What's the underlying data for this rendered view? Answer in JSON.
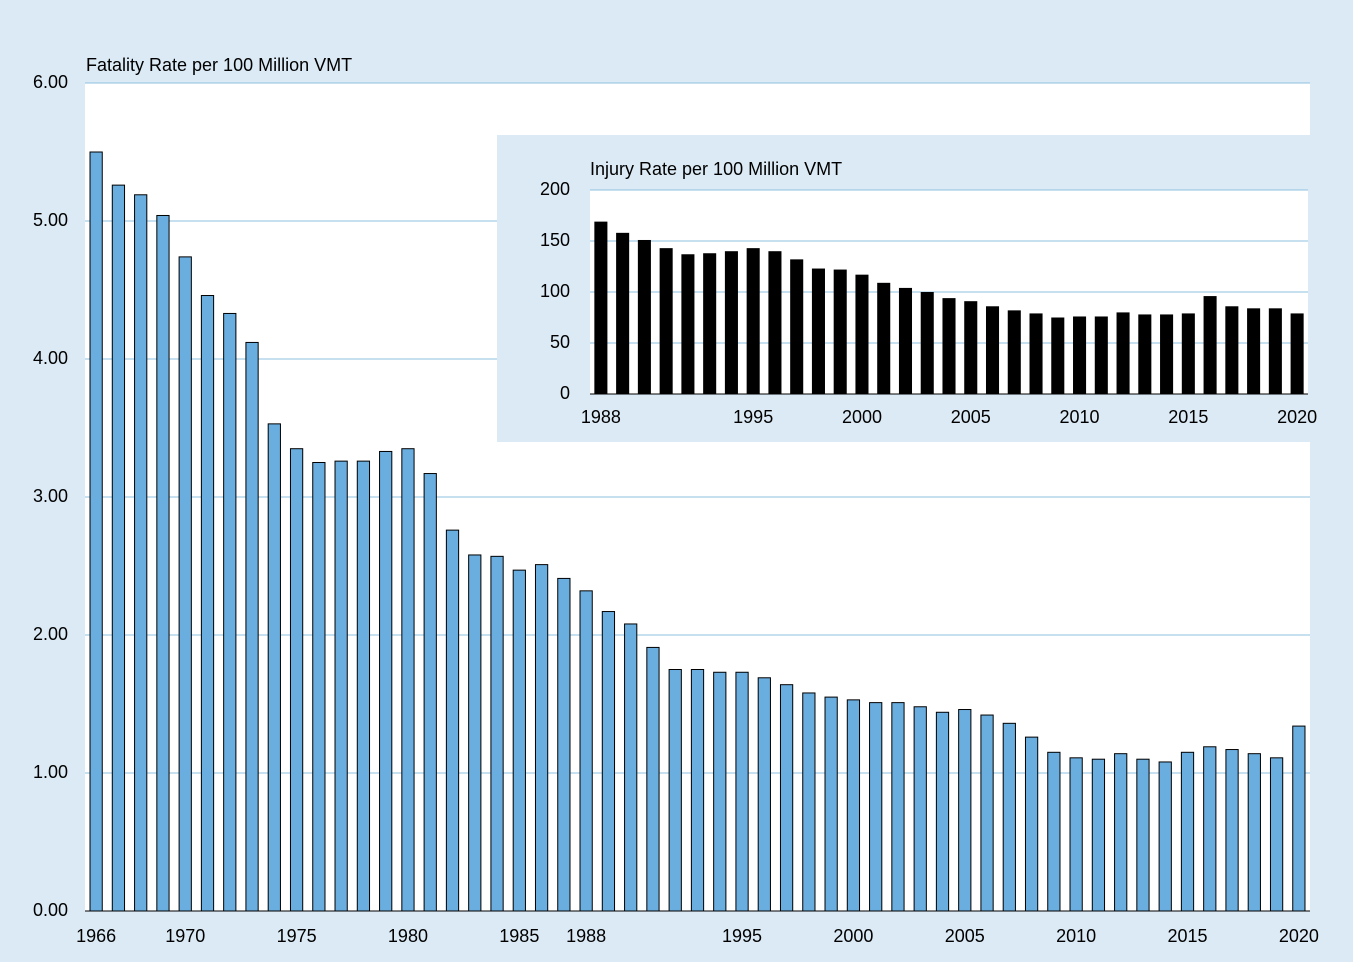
{
  "chart_data": [
    {
      "type": "bar",
      "title": "Fatality Rate per 100 Million VMT",
      "categories": [
        "1966",
        null,
        null,
        null,
        "1970",
        null,
        null,
        null,
        null,
        "1975",
        null,
        null,
        null,
        null,
        "1980",
        null,
        null,
        null,
        null,
        "1985",
        null,
        null,
        "1988",
        null,
        null,
        null,
        null,
        null,
        null,
        "1995",
        null,
        null,
        null,
        null,
        "2000",
        null,
        null,
        null,
        null,
        "2005",
        null,
        null,
        null,
        null,
        "2010",
        null,
        null,
        null,
        null,
        "2015",
        null,
        null,
        null,
        null,
        "2020"
      ],
      "values": [
        5.5,
        5.26,
        5.19,
        5.04,
        4.74,
        4.46,
        4.33,
        4.12,
        3.53,
        3.35,
        3.25,
        3.26,
        3.26,
        3.33,
        3.35,
        3.17,
        2.76,
        2.58,
        2.57,
        2.47,
        2.51,
        2.41,
        2.32,
        2.17,
        2.08,
        1.91,
        1.75,
        1.75,
        1.73,
        1.73,
        1.69,
        1.64,
        1.58,
        1.55,
        1.53,
        1.51,
        1.51,
        1.48,
        1.44,
        1.46,
        1.42,
        1.36,
        1.26,
        1.15,
        1.11,
        1.1,
        1.14,
        1.1,
        1.08,
        1.15,
        1.19,
        1.17,
        1.14,
        1.11,
        1.34
      ],
      "color": "#6aaee0",
      "ylim": [
        0,
        6
      ],
      "yticks": [
        {
          "value": 0,
          "label": "0.00"
        },
        {
          "value": 1,
          "label": "1.00"
        },
        {
          "value": 2,
          "label": "2.00"
        },
        {
          "value": 3,
          "label": "3.00"
        },
        {
          "value": 4,
          "label": "4.00"
        },
        {
          "value": 5,
          "label": "5.00"
        },
        {
          "value": 6,
          "label": "6.00"
        }
      ],
      "grid": true
    },
    {
      "type": "bar",
      "title": "Injury Rate per 100 Million VMT",
      "categories": [
        "1988",
        null,
        null,
        null,
        null,
        null,
        null,
        "1995",
        null,
        null,
        null,
        null,
        "2000",
        null,
        null,
        null,
        null,
        "2005",
        null,
        null,
        null,
        null,
        "2010",
        null,
        null,
        null,
        null,
        "2015",
        null,
        null,
        null,
        null,
        "2020"
      ],
      "values": [
        169,
        158,
        151,
        143,
        137,
        138,
        140,
        143,
        140,
        132,
        123,
        122,
        117,
        109,
        104,
        100,
        94,
        91,
        86,
        82,
        79,
        75,
        76,
        76,
        80,
        78,
        78,
        79,
        96,
        86,
        84,
        84,
        79
      ],
      "color": "#000000",
      "ylim": [
        0,
        200
      ],
      "yticks": [
        0,
        50,
        100,
        150,
        200
      ],
      "grid": true
    }
  ]
}
